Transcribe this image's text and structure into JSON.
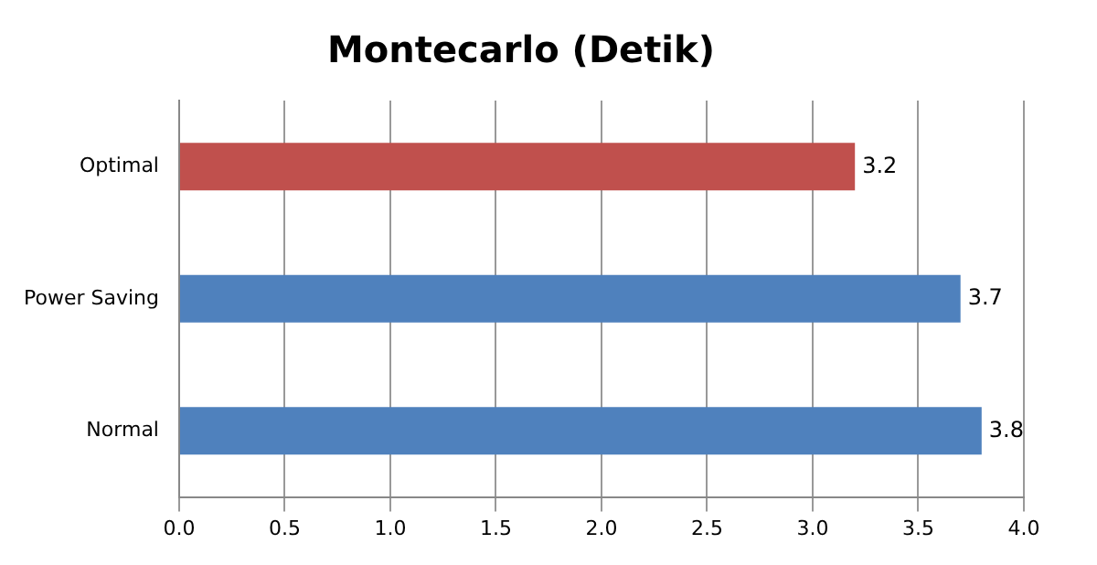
{
  "chart_data": {
    "type": "bar",
    "orientation": "horizontal",
    "title": "Montecarlo (Detik)",
    "categories": [
      "Optimal",
      "Power Saving",
      "Normal"
    ],
    "values": [
      3.2,
      3.7,
      3.8
    ],
    "colors": [
      "#c0504d",
      "#4f81bd",
      "#4f81bd"
    ],
    "xlim": [
      0,
      4
    ],
    "xticks": [
      {
        "value": 0,
        "label": "0.0"
      },
      0.5,
      {
        "value": 1,
        "label": "1.0"
      },
      1.5,
      {
        "value": 2,
        "label": "2.0"
      },
      2.5,
      {
        "value": 3,
        "label": "3.0"
      },
      3.5,
      {
        "value": 4,
        "label": "4.0"
      }
    ],
    "grid": "x",
    "data_labels": true
  }
}
